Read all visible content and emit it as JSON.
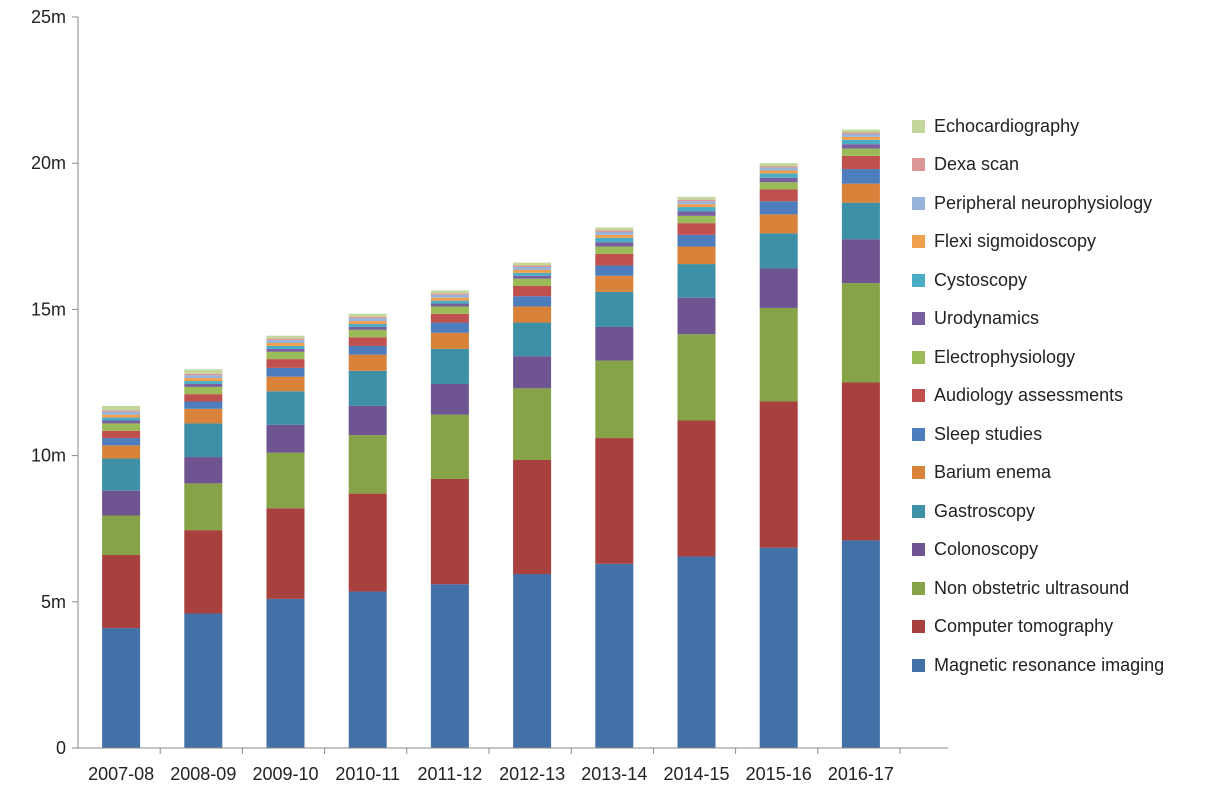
{
  "chart_data": {
    "type": "bar",
    "stacked": true,
    "categories": [
      "2007-08",
      "2008-09",
      "2009-10",
      "2010-11",
      "2011-12",
      "2012-13",
      "2013-14",
      "2014-15",
      "2015-16",
      "2016-17"
    ],
    "ylim": [
      0,
      25000000
    ],
    "yticks": [
      {
        "value": 0,
        "label": "0"
      },
      {
        "value": 5000000,
        "label": "5m"
      },
      {
        "value": 10000000,
        "label": "10m"
      },
      {
        "value": 15000000,
        "label": "15m"
      },
      {
        "value": 20000000,
        "label": "20m"
      },
      {
        "value": 25000000,
        "label": "25m"
      }
    ],
    "grid": false,
    "legend_position": "right",
    "series": [
      {
        "name": "Magnetic resonance imaging",
        "color": "#4470a8",
        "values": [
          4100000,
          4600000,
          5100000,
          5350000,
          5600000,
          5950000,
          6300000,
          6550000,
          6850000,
          7100000
        ]
      },
      {
        "name": "Computer tomography",
        "color": "#a8403e",
        "values": [
          2500000,
          2850000,
          3100000,
          3350000,
          3600000,
          3900000,
          4300000,
          4650000,
          5000000,
          5400000
        ]
      },
      {
        "name": "Non obstetric ultrasound",
        "color": "#86a347",
        "values": [
          1350000,
          1600000,
          1900000,
          2000000,
          2200000,
          2450000,
          2650000,
          2950000,
          3200000,
          3400000
        ]
      },
      {
        "name": "Colonoscopy",
        "color": "#6e5592",
        "values": [
          850000,
          900000,
          950000,
          1000000,
          1050000,
          1100000,
          1150000,
          1250000,
          1350000,
          1500000
        ]
      },
      {
        "name": "Gastroscopy",
        "color": "#3d90a6",
        "values": [
          1100000,
          1150000,
          1150000,
          1200000,
          1200000,
          1150000,
          1200000,
          1150000,
          1200000,
          1250000
        ]
      },
      {
        "name": "Barium enema",
        "color": "#d9823a",
        "values": [
          450000,
          500000,
          500000,
          550000,
          550000,
          550000,
          550000,
          600000,
          650000,
          650000
        ]
      },
      {
        "name": "Sleep studies",
        "color": "#4e7dbd",
        "values": [
          250000,
          250000,
          300000,
          300000,
          350000,
          350000,
          350000,
          400000,
          450000,
          500000
        ]
      },
      {
        "name": "Audiology assessments",
        "color": "#c0504d",
        "values": [
          250000,
          250000,
          300000,
          300000,
          300000,
          350000,
          400000,
          400000,
          400000,
          450000
        ]
      },
      {
        "name": "Electrophysiology",
        "color": "#9bbb59",
        "values": [
          250000,
          250000,
          250000,
          250000,
          250000,
          250000,
          250000,
          250000,
          250000,
          250000
        ]
      },
      {
        "name": "Urodynamics",
        "color": "#7a5f9e",
        "values": [
          100000,
          100000,
          100000,
          100000,
          100000,
          100000,
          150000,
          150000,
          150000,
          150000
        ]
      },
      {
        "name": "Cystoscopy",
        "color": "#4bacc6",
        "values": [
          100000,
          100000,
          100000,
          100000,
          100000,
          100000,
          150000,
          150000,
          150000,
          150000
        ]
      },
      {
        "name": "Flexi sigmoidoscopy",
        "color": "#f0a04c",
        "values": [
          100000,
          100000,
          100000,
          100000,
          100000,
          100000,
          100000,
          100000,
          100000,
          100000
        ]
      },
      {
        "name": "Peripheral neurophysiology",
        "color": "#97b3d9",
        "values": [
          100000,
          100000,
          100000,
          100000,
          100000,
          100000,
          100000,
          100000,
          100000,
          100000
        ]
      },
      {
        "name": "Dexa scan",
        "color": "#d99694",
        "values": [
          50000,
          50000,
          50000,
          50000,
          50000,
          50000,
          50000,
          50000,
          50000,
          50000
        ]
      },
      {
        "name": "Echocardiography",
        "color": "#c3d69b",
        "values": [
          150000,
          150000,
          100000,
          100000,
          100000,
          100000,
          100000,
          100000,
          100000,
          100000
        ]
      }
    ]
  }
}
